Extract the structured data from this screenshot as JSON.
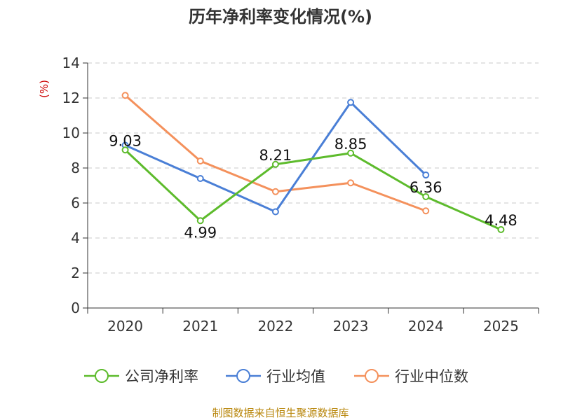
{
  "chart_data": {
    "type": "line",
    "title": "历年净利率变化情况(%)",
    "unit_label": "(%)",
    "categories": [
      "2020",
      "2021",
      "2022",
      "2023",
      "2024",
      "2025"
    ],
    "ylim": [
      0,
      14
    ],
    "yticks": [
      0,
      2,
      4,
      6,
      8,
      10,
      12,
      14
    ],
    "grid": true,
    "legend_position": "bottom",
    "series": [
      {
        "name": "公司净利率",
        "color": "#5dbb2c",
        "values": [
          9.03,
          4.99,
          8.21,
          8.85,
          6.36,
          4.48
        ],
        "labels": [
          "9.03",
          "4.99",
          "8.21",
          "8.85",
          "6.36",
          "4.48"
        ]
      },
      {
        "name": "行业均值",
        "color": "#4a7fd6",
        "values": [
          9.3,
          7.4,
          5.5,
          11.75,
          7.6,
          null
        ]
      },
      {
        "name": "行业中位数",
        "color": "#f4915c",
        "values": [
          12.15,
          8.4,
          6.65,
          7.15,
          5.55,
          null
        ]
      }
    ]
  },
  "source": "制图数据来自恒生聚源数据库"
}
